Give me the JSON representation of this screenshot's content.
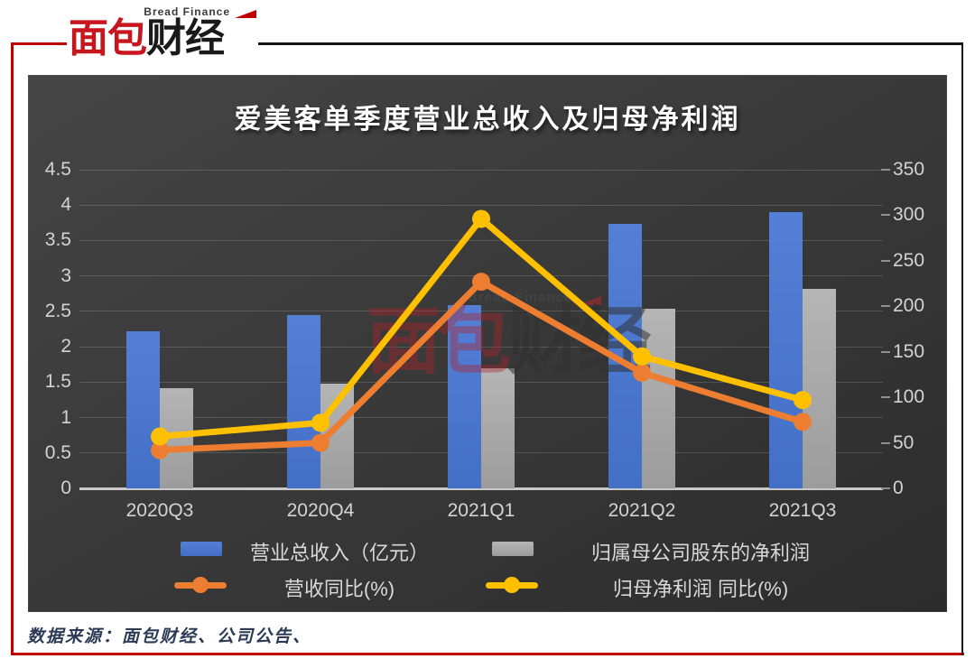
{
  "page": {
    "logo": {
      "top_text": "Bread Finance",
      "cn_red": "面包",
      "cn_black": "财经"
    },
    "footer": {
      "text": "数据来源：面包财经、公司公告、"
    },
    "accent_colors": {
      "frame_red": "#C00000",
      "frame_black": "#141414",
      "logo_red": "#C8161E"
    }
  },
  "chart_data": {
    "type": "bar",
    "subtype": "grouped-bars-with-lines",
    "title": "爱美客单季度营业总收入及归母净利润",
    "categories": [
      "2020Q3",
      "2020Q4",
      "2021Q1",
      "2021Q2",
      "2021Q3"
    ],
    "bar_series": [
      {
        "name": "营业总收入（亿元）",
        "axis": "left",
        "color": "#4270c6",
        "color_light": "#547fd6",
        "values": [
          2.22,
          2.45,
          2.59,
          3.73,
          3.9
        ]
      },
      {
        "name": "归属母公司股东的净利润",
        "axis": "left",
        "color": "#9c9c9c",
        "color_light": "#b5b5b5",
        "values": [
          1.42,
          1.48,
          1.7,
          2.54,
          2.82
        ]
      }
    ],
    "line_series": [
      {
        "name": "营收同比(%)",
        "axis": "right",
        "color": "#ED7D31",
        "values": [
          42,
          50,
          227,
          127,
          73
        ]
      },
      {
        "name": "归母净利润 同比(%)",
        "axis": "right",
        "color": "#FFC000",
        "values": [
          57,
          72,
          296,
          145,
          97
        ]
      }
    ],
    "left_axis": {
      "min": 0,
      "max": 4.5,
      "step": 0.5,
      "ticks": [
        "0",
        "0.5",
        "1",
        "1.5",
        "2",
        "2.5",
        "3",
        "3.5",
        "4",
        "4.5"
      ]
    },
    "right_axis": {
      "min": 0,
      "max": 350,
      "step": 50,
      "ticks": [
        "0",
        "50",
        "100",
        "150",
        "200",
        "250",
        "300",
        "350"
      ]
    },
    "grid": true,
    "legend_position": "bottom",
    "watermark": {
      "en": "Bread Finance",
      "cn_red": "面包",
      "cn_black": "财经"
    }
  }
}
